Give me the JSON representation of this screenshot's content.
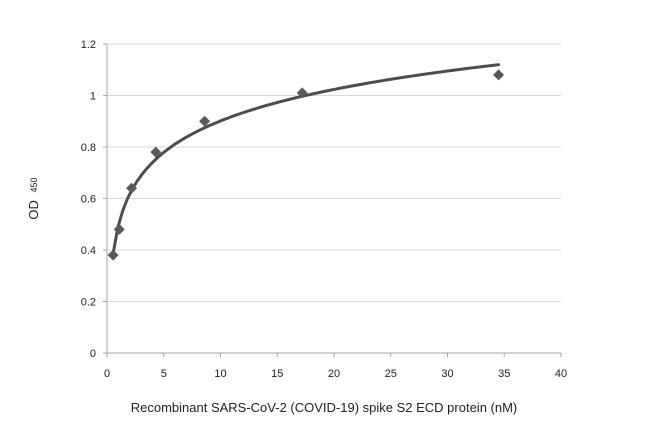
{
  "chart_data": {
    "type": "scatter",
    "xlabel": "Recombinant SARS-CoV-2 (COVID-19) spike S2 ECD protein (nM)",
    "ylabel": "OD",
    "ylabel_subscript": "450",
    "xlim": [
      0,
      40
    ],
    "ylim": [
      0,
      1.2
    ],
    "x_ticks": [
      0,
      5,
      10,
      15,
      20,
      25,
      30,
      35,
      40
    ],
    "y_ticks": [
      0,
      0.2,
      0.4,
      0.6,
      0.8,
      1,
      1.2
    ],
    "x_tick_labels": [
      "0",
      "5",
      "10",
      "15",
      "20",
      "25",
      "30",
      "35",
      "40"
    ],
    "y_tick_labels": [
      "0",
      "0.2",
      "0.4",
      "0.6",
      "0.8",
      "1",
      "1.2"
    ],
    "grid": "horizontal",
    "points": [
      {
        "x": 0.54,
        "y": 0.38
      },
      {
        "x": 1.08,
        "y": 0.48
      },
      {
        "x": 2.16,
        "y": 0.64
      },
      {
        "x": 4.3,
        "y": 0.78
      },
      {
        "x": 8.6,
        "y": 0.9
      },
      {
        "x": 17.2,
        "y": 1.01
      },
      {
        "x": 34.5,
        "y": 1.08
      }
    ],
    "fit_curve": {
      "type": "logarithmic",
      "x_start": 0.54,
      "x_end": 34.5
    },
    "colors": {
      "marker": "#595959",
      "curve": "#4d4d4d",
      "grid": "#d9d9d9",
      "axis": "#a6a6a6"
    }
  }
}
